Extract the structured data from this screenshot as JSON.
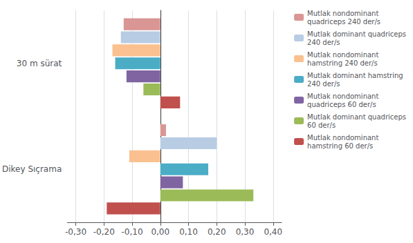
{
  "chart_data": {
    "type": "bar",
    "orientation": "horizontal",
    "categories": [
      "30 m sürat",
      "Dikey Sıçrama"
    ],
    "series": [
      {
        "name": "Mutlak nondominant\nquadriceps 240 der/s",
        "color": "#d99694",
        "values": [
          -0.13,
          0.02
        ]
      },
      {
        "name": "Mutlak dominant quadriceps\n240 der/s",
        "color": "#b8cce4",
        "values": [
          -0.14,
          0.2
        ]
      },
      {
        "name": "Mutlak nondominant\nhamstring 240 der/s",
        "color": "#fac090",
        "values": [
          -0.17,
          -0.11
        ]
      },
      {
        "name": "Mutlak dominant hamstring\n240 der/s",
        "color": "#4bacc6",
        "values": [
          -0.16,
          0.17
        ]
      },
      {
        "name": "Mutlak nondominant\nquadriceps 60 der/s",
        "color": "#8064a2",
        "values": [
          -0.12,
          0.08
        ]
      },
      {
        "name": "Mutlak dominant quadriceps\n60 der/s",
        "color": "#9bbb59",
        "values": [
          -0.06,
          0.33
        ]
      },
      {
        "name": "Mutlak nondominant\nhamstring 60 der/s",
        "color": "#c0504d",
        "values": [
          0.07,
          -0.19
        ]
      }
    ],
    "xlim": [
      -0.33,
      0.43
    ],
    "xticks": [
      {
        "value": -0.3,
        "label": "-0,30"
      },
      {
        "value": -0.2,
        "label": "-0,20"
      },
      {
        "value": -0.1,
        "label": "-0,10"
      },
      {
        "value": 0.0,
        "label": "0,00"
      },
      {
        "value": 0.1,
        "label": "0,10"
      },
      {
        "value": 0.2,
        "label": "0,20"
      },
      {
        "value": 0.3,
        "label": "0,30"
      },
      {
        "value": 0.4,
        "label": "0,40"
      }
    ],
    "grid": true,
    "legend": "right"
  }
}
